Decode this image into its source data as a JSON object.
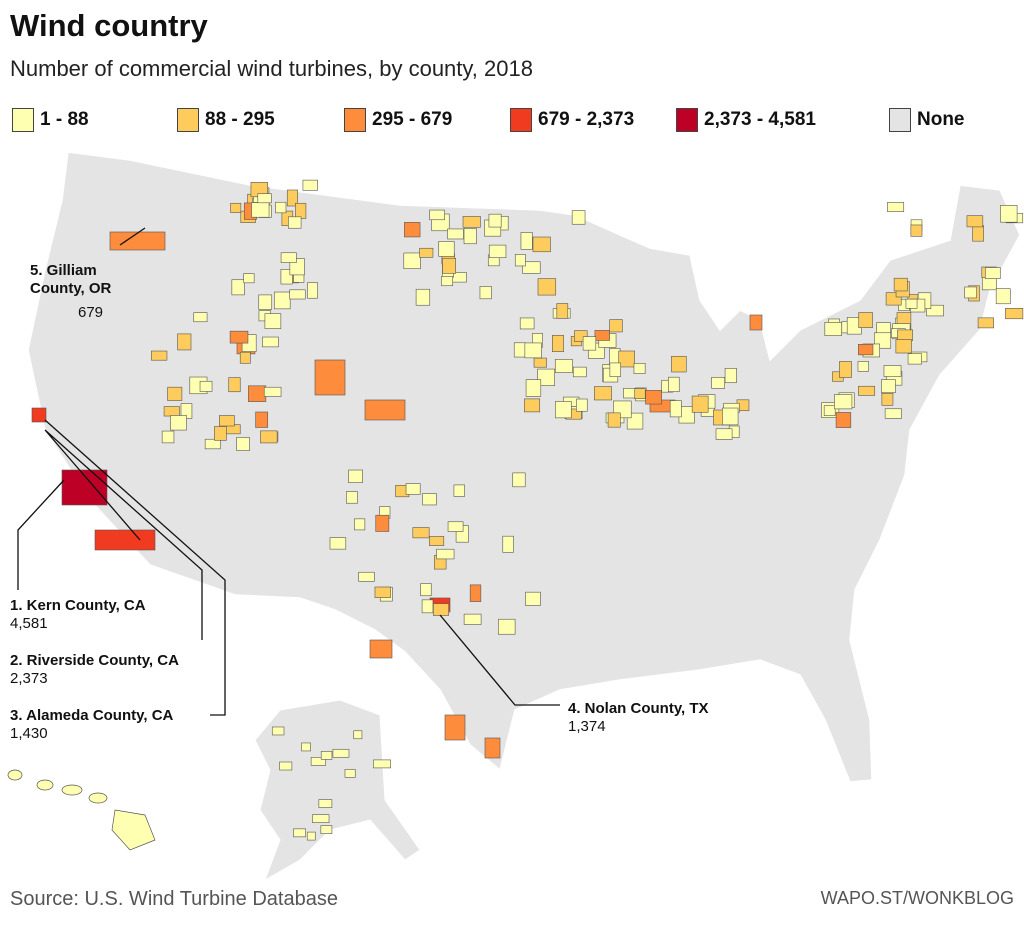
{
  "title": "Wind country",
  "subtitle": "Number of commercial wind turbines, by county, 2018",
  "legend": [
    {
      "label": "1 - 88",
      "color": "#ffffb2"
    },
    {
      "label": "88 - 295",
      "color": "#fecc5c"
    },
    {
      "label": "295 - 679",
      "color": "#fd8d3c"
    },
    {
      "label": "679 - 2,373",
      "color": "#f03b20"
    },
    {
      "label": "2,373 - 4,581",
      "color": "#bd0026"
    },
    {
      "label": "None",
      "color": "#e4e4e4"
    }
  ],
  "annotations": [
    {
      "rank_name": "1. Kern County, CA",
      "value": "4,581"
    },
    {
      "rank_name": "2. Riverside County, CA",
      "value": "2,373"
    },
    {
      "rank_name": "3. Alameda County, CA",
      "value": "1,430"
    },
    {
      "rank_name": "4. Nolan County, TX",
      "value": "1,374"
    },
    {
      "rank_name_line1": "5. Gilliam",
      "rank_name_line2": "County, OR",
      "value": "679"
    }
  ],
  "source": "Source: U.S. Wind Turbine Database",
  "credit": "WAPO.ST/WONKBLOG"
}
